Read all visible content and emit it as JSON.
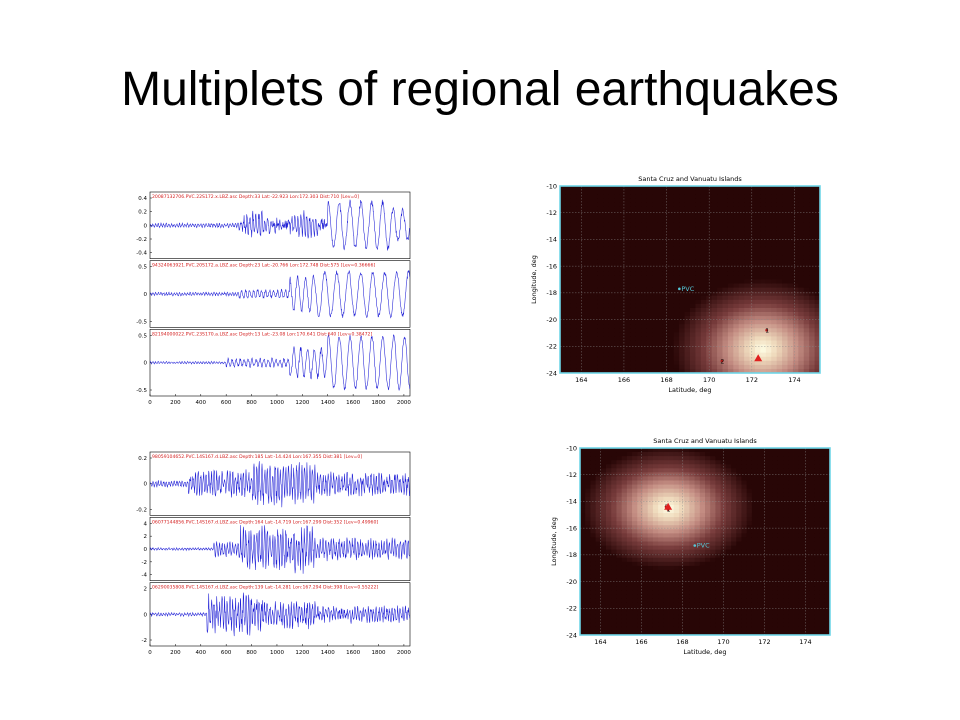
{
  "slide": {
    "title": "Multiplets of regional earthquakes"
  },
  "colors": {
    "wave": "#1f1fd6",
    "label": "#d42020",
    "frame": "#6fd6e8",
    "grid": "#8a8a8a",
    "station": "#54c8d8",
    "marker": "#e02020"
  },
  "chart_data": [
    {
      "type": "line",
      "xlim": [
        0,
        2048
      ],
      "x_ticks": [
        "0",
        "200",
        "400",
        "600",
        "800",
        "1000",
        "1200",
        "1400",
        "1600",
        "1800",
        "2000"
      ],
      "traces": [
        {
          "label": "20087132706.PVC.22S172.x.LBZ.asc Depth:33 Lat:-22.923 Lon:172.303 Dist:710 [Lev=0]",
          "y_ticks": [
            "0.4",
            "0.2",
            "0",
            "-0.2",
            "-0.4"
          ],
          "ylim": [
            -0.4,
            0.4
          ]
        },
        {
          "label": "94324063921.PVC.20S172.a.LBZ.asc Depth:23 Lat:-20.766 Lon:172.748 Dist:575 [Lev=0.36666]",
          "y_ticks": [
            "0.5",
            "0",
            "-0.5"
          ],
          "ylim": [
            -0.5,
            0.5
          ]
        },
        {
          "label": "82194000022.PVC.23S170.a.LBZ.asc Depth:13 Lat:-23.08 Lon:170.641 Dist:640 [Lev=0.38472]",
          "y_ticks": [
            "0.5",
            "0",
            "-0.5"
          ],
          "ylim": [
            -0.5,
            0.5
          ]
        }
      ]
    },
    {
      "type": "heatmap",
      "title": "Santa Cruz and Vanuatu Islands",
      "xlabel": "Latitude, deg",
      "ylabel": "Longitude, deg",
      "xlim": [
        163,
        175.2
      ],
      "ylim": [
        -24,
        -10
      ],
      "x_ticks": [
        164,
        166,
        168,
        170,
        172,
        174
      ],
      "y_ticks": [
        -10,
        -12,
        -14,
        -16,
        -18,
        -20,
        -22,
        -24
      ],
      "station": {
        "label": "PVC",
        "x": 168.6,
        "y": -17.7
      },
      "hotspot": {
        "x": 172.5,
        "y": -22.2
      },
      "events": [
        {
          "label": "1",
          "x": 172.7,
          "y": -20.8
        },
        {
          "label": "2",
          "x": 170.6,
          "y": -23.1
        }
      ],
      "triangle": {
        "x": 172.3,
        "y": -22.9
      }
    },
    {
      "type": "line",
      "xlim": [
        0,
        2048
      ],
      "x_ticks": [
        "0",
        "200",
        "400",
        "600",
        "800",
        "1000",
        "1200",
        "1400",
        "1600",
        "1800",
        "2000"
      ],
      "traces": [
        {
          "label": "98059104652.PVC.14S167.d.LBZ.asc Depth:185 Lat:-14.424 Lon:167.355 Dist:381 [Lev=0]",
          "y_ticks": [
            "0.2",
            "0",
            "-0.2"
          ],
          "ylim": [
            -0.3,
            0.3
          ]
        },
        {
          "label": "06077144856.PVC.14S167.d.LBZ.asc Depth:164 Lat:-14.719 Lon:167.299 Dist:352 [Lev=0.49960]",
          "y_ticks": [
            "4",
            "2",
            "0",
            "-2",
            "-4"
          ],
          "ylim": [
            -4.5,
            4.5
          ]
        },
        {
          "label": "06290035808.PVC.14S167.d.LBZ.asc Depth:139 Lat:-14.281 Lon:167.294 Dist:398 [Lev=0.55222]",
          "y_ticks": [
            "2",
            "0",
            "-2"
          ],
          "ylim": [
            -3,
            3
          ]
        }
      ]
    },
    {
      "type": "heatmap",
      "title": "Santa Cruz and Vanuatu Islands",
      "xlabel": "Latitude, deg",
      "ylabel": "Longitude, deg",
      "xlim": [
        163,
        175.2
      ],
      "ylim": [
        -24,
        -10
      ],
      "x_ticks": [
        164,
        166,
        168,
        170,
        172,
        174
      ],
      "y_ticks": [
        -10,
        -12,
        -14,
        -16,
        -18,
        -20,
        -22,
        -24
      ],
      "station": {
        "label": "PVC",
        "x": 168.6,
        "y": -17.3
      },
      "hotspot": {
        "x": 167.3,
        "y": -14.5
      },
      "events": [
        {
          "label": "1",
          "x": 167.3,
          "y": -14.6
        },
        {
          "label": "2",
          "x": 167.2,
          "y": -14.4
        }
      ],
      "triangle": {
        "x": 167.3,
        "y": -14.4
      }
    }
  ]
}
